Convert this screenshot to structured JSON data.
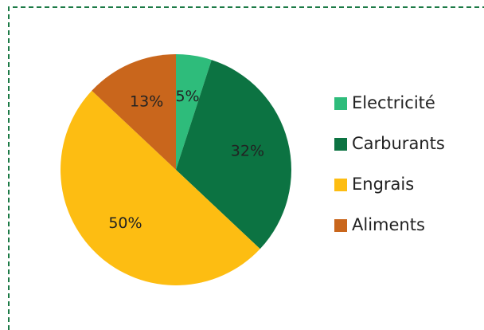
{
  "chart_data": {
    "type": "pie",
    "categories": [
      "Electricité",
      "Carburants",
      "Engrais",
      "Aliments"
    ],
    "values": [
      5,
      32,
      50,
      13
    ],
    "value_labels": [
      "5%",
      "32%",
      "50%",
      "13%"
    ],
    "colors": [
      "#2ebc7b",
      "#0c7342",
      "#fdbd12",
      "#c9661c"
    ],
    "legend": "right"
  }
}
